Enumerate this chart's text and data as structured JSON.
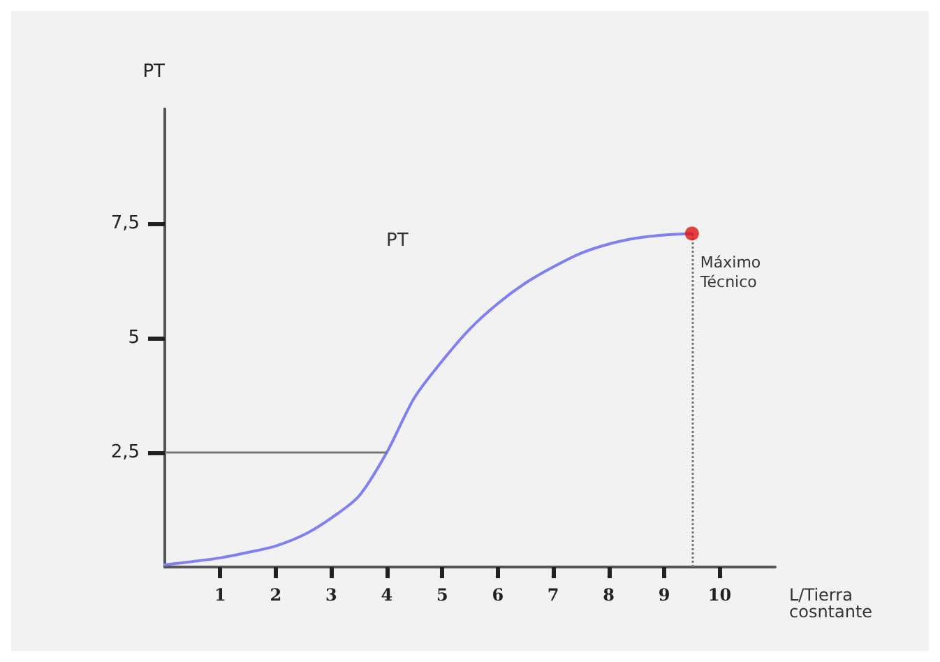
{
  "chart_data": {
    "type": "line",
    "ylabel": "PT",
    "xlabel": "L/Tierra\ncosntante",
    "xlim": [
      0,
      11
    ],
    "ylim": [
      0,
      10
    ],
    "xticks": [
      1,
      2,
      3,
      4,
      5,
      6,
      7,
      8,
      9,
      10
    ],
    "yticks": [
      {
        "value": 2.5,
        "label": "2,5"
      },
      5,
      {
        "value": 7.5,
        "label": "7,5"
      }
    ],
    "grid": false,
    "marker": "none",
    "line_style": "solid",
    "series": [
      {
        "color": "#8080f0",
        "x": [
          0,
          0.5,
          1,
          1.5,
          2,
          2.5,
          3,
          3.5,
          4,
          4.5,
          5,
          5.5,
          6,
          6.5,
          7,
          7.5,
          8,
          8.5,
          9,
          9.5
        ],
        "values": [
          0.05,
          0.12,
          0.2,
          0.32,
          0.46,
          0.7,
          1.07,
          1.55,
          2.5,
          3.7,
          4.5,
          5.2,
          5.75,
          6.2,
          6.55,
          6.85,
          7.05,
          7.18,
          7.25,
          7.28
        ]
      },
      {
        "type": "scatter",
        "marker": "circle",
        "color": "#dd1111",
        "x": [
          9.5
        ],
        "values": [
          7.28
        ]
      }
    ],
    "ref_lines": [
      {
        "axis": "y",
        "value": 2.5,
        "color": "#777777",
        "line_style": "solid"
      },
      {
        "axis": "x",
        "value": 9.5,
        "color": "#777777",
        "line_style": "dotted"
      }
    ],
    "annotations": [
      "PT",
      {
        "text": "Máximo\nTécnico",
        "x": 9.5,
        "y": 7.28
      }
    ]
  }
}
